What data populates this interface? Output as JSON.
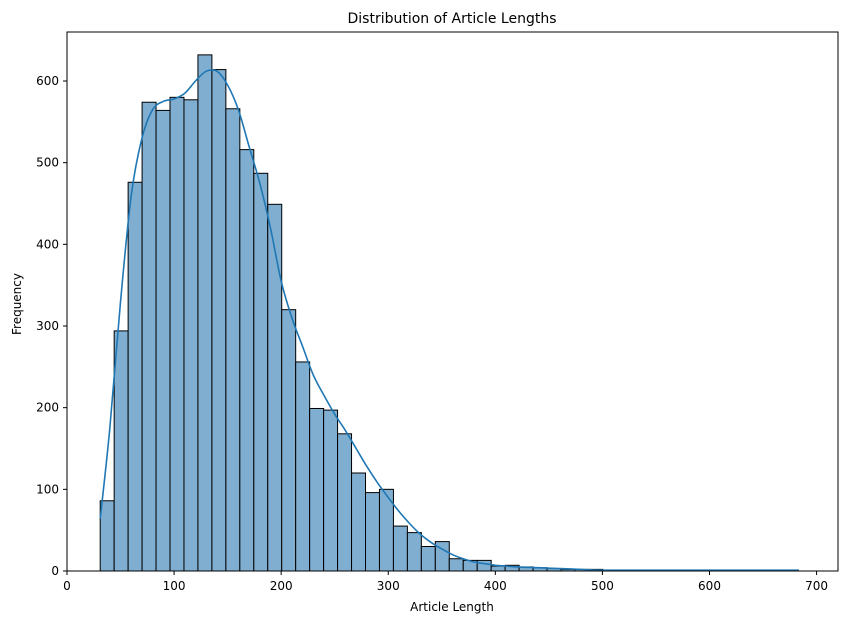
{
  "chart_data": {
    "type": "bar",
    "subtype": "histogram_with_kde",
    "title": "Distribution of Article Lengths",
    "xlabel": "Article Length",
    "ylabel": "Frequency",
    "xlim": [
      0,
      720
    ],
    "ylim": [
      0,
      660
    ],
    "xticks": [
      0,
      100,
      200,
      300,
      400,
      500,
      600,
      700
    ],
    "yticks": [
      0,
      100,
      200,
      300,
      400,
      500,
      600
    ],
    "grid": false,
    "legend": "none",
    "bar_color": "#80aed0",
    "bar_edge_color": "#000000",
    "kde_color": "#1f77b4",
    "bins": {
      "x_start": 31,
      "bin_width": 13.04,
      "counts": [
        86,
        294,
        476,
        574,
        564,
        580,
        577,
        632,
        614,
        566,
        516,
        487,
        449,
        320,
        256,
        199,
        197,
        168,
        120,
        96,
        100,
        55,
        47,
        30,
        36,
        15,
        13,
        13,
        6,
        7,
        5,
        4,
        3,
        2,
        2,
        2,
        1,
        1,
        1,
        1,
        1,
        1,
        1,
        1,
        1,
        1,
        1,
        1,
        1,
        1
      ]
    },
    "kde": {
      "x": [
        31,
        40,
        50,
        60,
        70,
        80,
        90,
        100,
        110,
        120,
        130,
        140,
        150,
        160,
        170,
        180,
        190,
        200,
        210,
        220,
        230,
        240,
        250,
        260,
        270,
        280,
        290,
        300,
        310,
        320,
        330,
        340,
        350,
        360,
        370,
        380,
        390,
        400,
        410,
        420,
        440,
        460,
        480,
        500,
        550,
        600,
        650,
        683
      ],
      "y": [
        64,
        175,
        330,
        460,
        530,
        565,
        575,
        578,
        585,
        600,
        612,
        612,
        595,
        565,
        520,
        475,
        420,
        355,
        310,
        275,
        240,
        215,
        192,
        172,
        150,
        128,
        108,
        90,
        73,
        58,
        45,
        35,
        27,
        20,
        15,
        11,
        9,
        7,
        6,
        5,
        4,
        3,
        2,
        1,
        1,
        1,
        1,
        1
      ]
    }
  }
}
